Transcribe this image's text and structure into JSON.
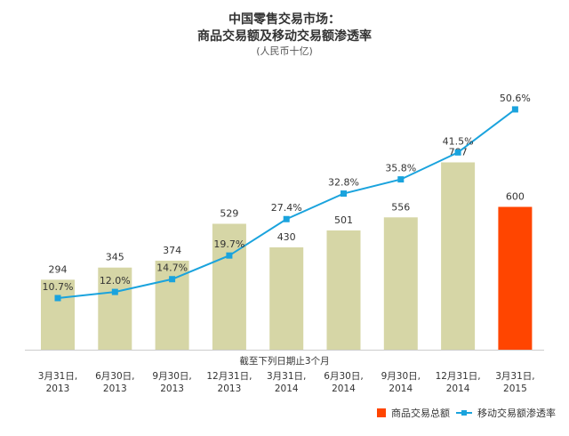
{
  "chart_data": {
    "type": "bar",
    "title_lines": [
      "中国零售交易市场：",
      "商品交易额及移动交易额渗透率"
    ],
    "unit": "(人民币十亿)",
    "xlabel": "截至下列日期止3个月",
    "categories": [
      [
        "3月31日,",
        "2013"
      ],
      [
        "6月30日,",
        "2013"
      ],
      [
        "9月30日,",
        "2013"
      ],
      [
        "12月31日,",
        "2013"
      ],
      [
        "3月31日,",
        "2014"
      ],
      [
        "6月30日,",
        "2014"
      ],
      [
        "9月30日,",
        "2014"
      ],
      [
        "12月31日,",
        "2014"
      ],
      [
        "3月31日,",
        "2015"
      ]
    ],
    "series": [
      {
        "name": "商品交易总额",
        "type": "bar",
        "values": [
          294,
          345,
          374,
          529,
          430,
          501,
          556,
          787,
          600
        ],
        "labels": [
          "294",
          "345",
          "374",
          "529",
          "430",
          "501",
          "556",
          "787",
          "600"
        ],
        "color": "#d6d6a6",
        "highlight_last_color": "#ff4500"
      },
      {
        "name": "移动交易额渗透率",
        "type": "line",
        "values": [
          10.7,
          12.0,
          14.7,
          19.7,
          27.4,
          32.8,
          35.8,
          41.5,
          50.6
        ],
        "labels": [
          "10.7%",
          "12.0%",
          "14.7%",
          "19.7%",
          "27.4%",
          "32.8%",
          "35.8%",
          "41.5%",
          "50.6%"
        ],
        "color": "#1aa3dd"
      }
    ],
    "grid": false,
    "legend_position": "bottom-right"
  }
}
